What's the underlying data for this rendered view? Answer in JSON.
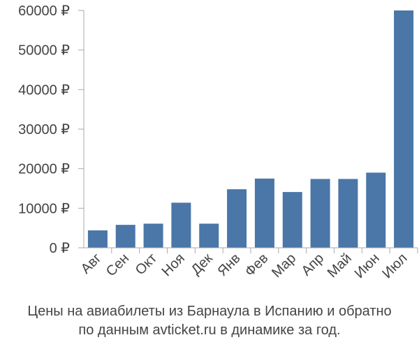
{
  "chart_data": {
    "type": "bar",
    "categories": [
      "Авг",
      "Сен",
      "Окт",
      "Ноя",
      "Дек",
      "Янв",
      "Фев",
      "Мар",
      "Апр",
      "Май",
      "Июн",
      "Июл"
    ],
    "values": [
      4400,
      5800,
      6100,
      11400,
      6100,
      14800,
      17500,
      14100,
      17400,
      17400,
      19000,
      60000
    ],
    "ylim": [
      0,
      60000
    ],
    "yticks": [
      0,
      10000,
      20000,
      30000,
      40000,
      50000,
      60000
    ],
    "ytick_labels": [
      "0 ₽",
      "10000 ₽",
      "20000 ₽",
      "30000 ₽",
      "40000 ₽",
      "50000 ₽",
      "60000 ₽"
    ],
    "bar_color": "#4a76a8",
    "axis_color": "#aaaaaa",
    "grid": false
  },
  "caption": {
    "line1": "Цены на авиабилеты из Барнаула в Испанию и обратно",
    "line2": "по данным avticket.ru в динамике за год."
  }
}
